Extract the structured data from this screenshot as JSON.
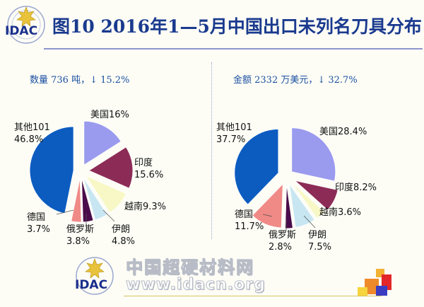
{
  "title": "图10  2016年1—5月中国出口未列名刀具分布",
  "logo": {
    "text": "IDAC"
  },
  "footer": {
    "name": "中国超硬材料网",
    "url": "www.idacn.org"
  },
  "colors": {
    "title": "#1a3a8e",
    "subtitle": "#1a4fa0",
    "rule": "#8f95cf"
  },
  "chart_data": [
    {
      "type": "pie",
      "title": "",
      "subtitle": "数量 736 吨，↓ 15.2%",
      "slices": [
        {
          "name": "美国",
          "label": "美国16%",
          "value": 16.0,
          "color": "#9a9aee"
        },
        {
          "name": "印度",
          "label": "印度\n15.6%",
          "value": 15.6,
          "color": "#8c2c56"
        },
        {
          "name": "越南",
          "label": "越南9.3%",
          "value": 9.3,
          "color": "#f8f8c6"
        },
        {
          "name": "伊朗",
          "label": "伊朗\n4.8%",
          "value": 4.8,
          "color": "#c8e6f2"
        },
        {
          "name": "俄罗斯",
          "label": "俄罗斯\n3.8%",
          "value": 3.8,
          "color": "#4a0c4a"
        },
        {
          "name": "德国",
          "label": "德国\n3.7%",
          "value": 3.7,
          "color": "#f08a86"
        },
        {
          "name": "其他101",
          "label": "其他101\n46.8%",
          "value": 46.8,
          "color": "#0c5cc0"
        }
      ]
    },
    {
      "type": "pie",
      "title": "",
      "subtitle": "金额 2332 万美元，↓ 32.7%",
      "slices": [
        {
          "name": "美国",
          "label": "美国28.4%",
          "value": 28.4,
          "color": "#9a9aee"
        },
        {
          "name": "印度",
          "label": "印度8.2%",
          "value": 8.2,
          "color": "#8c2c56"
        },
        {
          "name": "越南",
          "label": "越南3.6%",
          "value": 3.6,
          "color": "#f8f8c6"
        },
        {
          "name": "伊朗",
          "label": "伊朗\n7.5%",
          "value": 7.5,
          "color": "#c8e6f2"
        },
        {
          "name": "俄罗斯",
          "label": "俄罗斯\n2.8%",
          "value": 2.8,
          "color": "#4a0c4a"
        },
        {
          "name": "德国",
          "label": "德国\n11.7%",
          "value": 11.7,
          "color": "#f08a86"
        },
        {
          "name": "其他101",
          "label": "其他101\n37.7%",
          "value": 37.7,
          "color": "#0c5cc0"
        }
      ]
    }
  ]
}
